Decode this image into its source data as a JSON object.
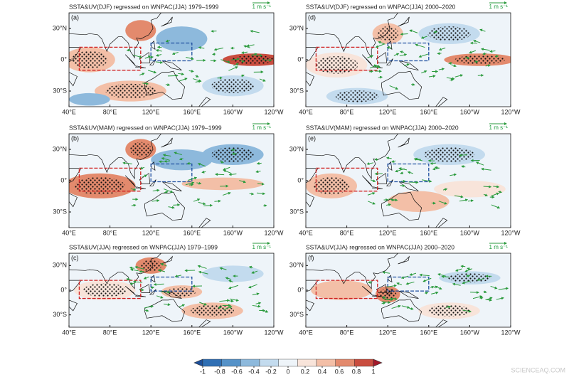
{
  "panels": [
    {
      "title": "SSTA&UV(DJF) regressed on WNPAC(JJA) 1979–1999",
      "label": "(a)",
      "scale": "1 m s⁻¹"
    },
    {
      "title": "SSTA&UV(DJF) regressed on WNPAC(JJA) 2000–2020",
      "label": "(d)",
      "scale": "1 m s⁻¹"
    },
    {
      "title": "SSTA&UV(MAM) regressed on WNPAC(JJA) 1979–1999",
      "label": "(b)",
      "scale": "1 m s⁻¹"
    },
    {
      "title": "SSTA&UV(MAM) regressed on WNPAC(JJA) 2000–2020",
      "label": "(e)",
      "scale": "1 m s⁻¹"
    },
    {
      "title": "SSTA&UV(JJA) regressed on WNPAC(JJA) 1979–1999",
      "label": "(c)",
      "scale": "1 m s⁻¹"
    },
    {
      "title": "SSTA&UV(JJA) regressed on WNPAC(JJA) 2000–2020",
      "label": "(f)",
      "scale": "1 m s⁻¹"
    }
  ],
  "lat_labels": [
    "30°N",
    "0°",
    "30°S"
  ],
  "lon_labels": [
    "40°E",
    "80°E",
    "120°E",
    "160°E",
    "160°W",
    "120°W"
  ],
  "colorbar": {
    "ticks": [
      -1,
      -0.8,
      -0.6,
      -0.4,
      -0.2,
      0,
      0.2,
      0.4,
      0.6,
      0.8,
      1
    ],
    "colors": [
      "#1d4f9a",
      "#2f6fb4",
      "#5592c8",
      "#8db9dc",
      "#c3dbee",
      "#eef4f9",
      "#f8e4da",
      "#f3bfa7",
      "#e38a6d",
      "#c94d3f",
      "#a3192b"
    ]
  },
  "watermark": "SCIENCEAQ.COM"
}
